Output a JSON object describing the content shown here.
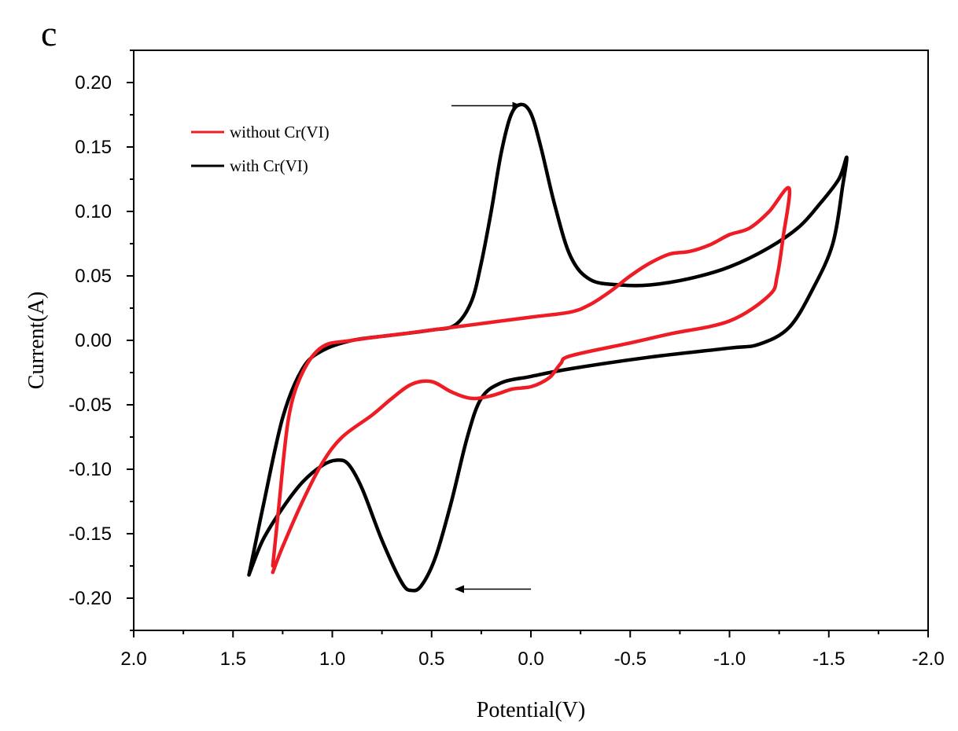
{
  "chart_data": {
    "type": "line",
    "panel_label": "c",
    "xlabel": "Potential(V)",
    "ylabel": "Current(A)",
    "xlim": [
      2.0,
      -2.0
    ],
    "ylim": [
      -0.225,
      0.225
    ],
    "x_ticks": [
      2.0,
      1.5,
      1.0,
      0.5,
      0.0,
      -0.5,
      -1.0,
      -1.5,
      -2.0
    ],
    "x_tick_labels": [
      "2.0",
      "1.5",
      "1.0",
      "0.5",
      "0.0",
      "-0.5",
      "-1.0",
      "-1.5",
      "-2.0"
    ],
    "y_ticks": [
      0.2,
      0.15,
      0.1,
      0.05,
      0.0,
      -0.05,
      -0.1,
      -0.15,
      -0.2
    ],
    "y_tick_labels": [
      "0.20",
      "0.15",
      "0.10",
      "0.05",
      "0.00",
      "-0.05",
      "-0.10",
      "-0.15",
      "-0.20"
    ],
    "legend_position": "top-left",
    "series": [
      {
        "name": "without Cr(VI)",
        "color": "#ee1c25",
        "points": [
          [
            1.3,
            -0.175
          ],
          [
            1.27,
            -0.13
          ],
          [
            1.22,
            -0.06
          ],
          [
            1.15,
            -0.025
          ],
          [
            1.05,
            -0.005
          ],
          [
            0.9,
            0.0
          ],
          [
            0.6,
            0.006
          ],
          [
            0.3,
            0.012
          ],
          [
            0.0,
            0.018
          ],
          [
            -0.2,
            0.022
          ],
          [
            -0.3,
            0.028
          ],
          [
            -0.4,
            0.038
          ],
          [
            -0.5,
            0.05
          ],
          [
            -0.6,
            0.06
          ],
          [
            -0.7,
            0.067
          ],
          [
            -0.8,
            0.069
          ],
          [
            -0.9,
            0.074
          ],
          [
            -1.0,
            0.082
          ],
          [
            -1.1,
            0.087
          ],
          [
            -1.2,
            0.1
          ],
          [
            -1.3,
            0.118
          ],
          [
            -1.27,
            0.08
          ],
          [
            -1.24,
            0.05
          ],
          [
            -1.2,
            0.035
          ],
          [
            -1.0,
            0.015
          ],
          [
            -0.7,
            0.005
          ],
          [
            -0.5,
            -0.002
          ],
          [
            -0.2,
            -0.012
          ],
          [
            -0.15,
            -0.018
          ],
          [
            -0.1,
            -0.028
          ],
          [
            -0.05,
            -0.033
          ],
          [
            0.0,
            -0.036
          ],
          [
            0.05,
            -0.037
          ],
          [
            0.1,
            -0.038
          ],
          [
            0.2,
            -0.043
          ],
          [
            0.3,
            -0.045
          ],
          [
            0.4,
            -0.04
          ],
          [
            0.5,
            -0.032
          ],
          [
            0.6,
            -0.034
          ],
          [
            0.7,
            -0.045
          ],
          [
            0.8,
            -0.058
          ],
          [
            0.95,
            -0.075
          ],
          [
            1.05,
            -0.095
          ],
          [
            1.15,
            -0.125
          ],
          [
            1.25,
            -0.16
          ],
          [
            1.3,
            -0.18
          ]
        ]
      },
      {
        "name": "with Cr(VI)",
        "color": "#000000",
        "points": [
          [
            1.42,
            -0.182
          ],
          [
            1.35,
            -0.13
          ],
          [
            1.25,
            -0.06
          ],
          [
            1.15,
            -0.022
          ],
          [
            1.05,
            -0.008
          ],
          [
            0.9,
            0.0
          ],
          [
            0.7,
            0.004
          ],
          [
            0.5,
            0.008
          ],
          [
            0.38,
            0.012
          ],
          [
            0.3,
            0.03
          ],
          [
            0.25,
            0.06
          ],
          [
            0.2,
            0.1
          ],
          [
            0.15,
            0.145
          ],
          [
            0.1,
            0.175
          ],
          [
            0.05,
            0.183
          ],
          [
            0.0,
            0.176
          ],
          [
            -0.05,
            0.15
          ],
          [
            -0.12,
            0.105
          ],
          [
            -0.2,
            0.065
          ],
          [
            -0.3,
            0.047
          ],
          [
            -0.45,
            0.043
          ],
          [
            -0.6,
            0.043
          ],
          [
            -0.8,
            0.048
          ],
          [
            -1.0,
            0.057
          ],
          [
            -1.2,
            0.072
          ],
          [
            -1.35,
            0.088
          ],
          [
            -1.45,
            0.105
          ],
          [
            -1.55,
            0.125
          ],
          [
            -1.59,
            0.142
          ],
          [
            -1.57,
            0.12
          ],
          [
            -1.52,
            0.075
          ],
          [
            -1.42,
            0.04
          ],
          [
            -1.3,
            0.01
          ],
          [
            -1.15,
            -0.003
          ],
          [
            -1.0,
            -0.006
          ],
          [
            -0.6,
            -0.013
          ],
          [
            -0.2,
            -0.022
          ],
          [
            0.0,
            -0.028
          ],
          [
            0.15,
            -0.033
          ],
          [
            0.25,
            -0.045
          ],
          [
            0.32,
            -0.075
          ],
          [
            0.4,
            -0.125
          ],
          [
            0.48,
            -0.168
          ],
          [
            0.55,
            -0.19
          ],
          [
            0.6,
            -0.194
          ],
          [
            0.65,
            -0.188
          ],
          [
            0.75,
            -0.155
          ],
          [
            0.85,
            -0.115
          ],
          [
            0.92,
            -0.096
          ],
          [
            0.98,
            -0.093
          ],
          [
            1.05,
            -0.097
          ],
          [
            1.15,
            -0.11
          ],
          [
            1.25,
            -0.13
          ],
          [
            1.35,
            -0.155
          ],
          [
            1.42,
            -0.182
          ]
        ]
      }
    ],
    "annotations": [
      {
        "type": "arrow",
        "direction": "right",
        "from": [
          0.4,
          0.182
        ],
        "to": [
          0.05,
          0.182
        ]
      },
      {
        "type": "arrow",
        "direction": "left",
        "from": [
          0.0,
          -0.193
        ],
        "to": [
          0.38,
          -0.193
        ]
      }
    ]
  }
}
